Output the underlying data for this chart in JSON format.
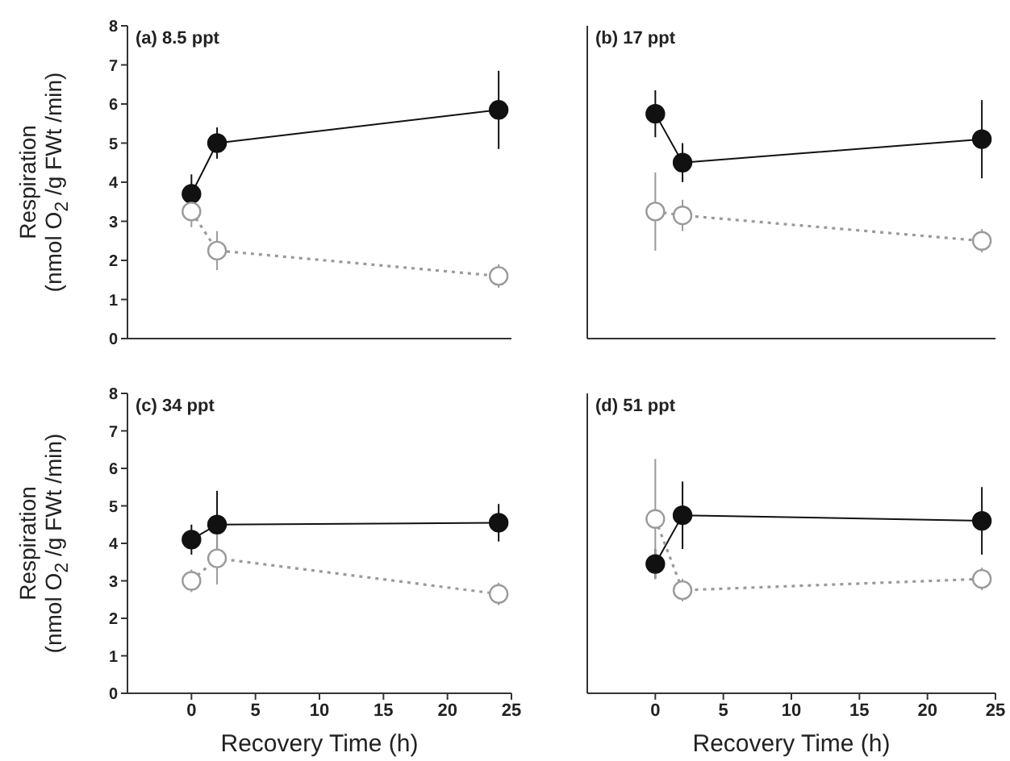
{
  "chart_data": [
    {
      "type": "line",
      "title": "(a) 8.5 ppt",
      "ylabel": "Respiration\n(nmol O$_{2}$ /g FWt /min)",
      "x": [
        0,
        2,
        24
      ],
      "xlim": [
        -5,
        25
      ],
      "xticks": [
        0,
        5,
        10,
        15,
        20,
        25
      ],
      "ylim": [
        0,
        8
      ],
      "yticks": [
        0,
        1,
        2,
        3,
        4,
        5,
        6,
        7,
        8
      ],
      "tick_labels": "y",
      "marker": "circle",
      "grid": false,
      "legend": false,
      "series": [
        {
          "color": "#111111",
          "values": [
            3.7,
            5.0,
            5.85
          ],
          "errors": [
            0.5,
            0.4,
            1.0
          ],
          "line_style": "solid"
        },
        {
          "color": "#9a9a9a",
          "values": [
            3.25,
            2.25,
            1.6
          ],
          "errors": [
            0.4,
            0.5,
            0.3
          ],
          "line_style": "dotted"
        }
      ]
    },
    {
      "type": "line",
      "title": "(b) 17 ppt",
      "x": [
        0,
        2,
        24
      ],
      "xlim": [
        -5,
        25
      ],
      "xticks": [
        0,
        5,
        10,
        15,
        20,
        25
      ],
      "ylim": [
        0,
        8
      ],
      "yticks": [
        0,
        1,
        2,
        3,
        4,
        5,
        6,
        7,
        8
      ],
      "tick_labels": false,
      "marker": "circle",
      "grid": false,
      "legend": false,
      "series": [
        {
          "color": "#111111",
          "values": [
            5.75,
            4.5,
            5.1
          ],
          "errors": [
            0.6,
            0.5,
            1.0
          ],
          "line_style": "solid"
        },
        {
          "color": "#9a9a9a",
          "values": [
            3.25,
            3.15,
            2.5
          ],
          "errors": [
            1.0,
            0.4,
            0.3
          ],
          "line_style": "dotted"
        }
      ]
    },
    {
      "type": "line",
      "title": "(c) 34 ppt",
      "xlabel": "Recovery Time (h)",
      "ylabel": "Respiration\n(nmol O$_{2}$ /g FWt /min)",
      "x": [
        0,
        2,
        24
      ],
      "xlim": [
        -5,
        25
      ],
      "xticks": [
        0,
        5,
        10,
        15,
        20,
        25
      ],
      "ylim": [
        0,
        8
      ],
      "yticks": [
        0,
        1,
        2,
        3,
        4,
        5,
        6,
        7,
        8
      ],
      "marker": "circle",
      "grid": false,
      "legend": false,
      "series": [
        {
          "color": "#111111",
          "values": [
            4.1,
            4.5,
            4.55
          ],
          "errors": [
            0.4,
            0.9,
            0.5
          ],
          "line_style": "solid"
        },
        {
          "color": "#9a9a9a",
          "values": [
            3.0,
            3.6,
            2.65
          ],
          "errors": [
            0.3,
            0.7,
            0.3
          ],
          "line_style": "dotted"
        }
      ]
    },
    {
      "type": "line",
      "title": "(d) 51 ppt",
      "xlabel": "Recovery Time (h)",
      "x": [
        0,
        2,
        24
      ],
      "xlim": [
        -5,
        25
      ],
      "xticks": [
        0,
        5,
        10,
        15,
        20,
        25
      ],
      "ylim": [
        0,
        8
      ],
      "yticks": [
        0,
        1,
        2,
        3,
        4,
        5,
        6,
        7,
        8
      ],
      "tick_labels": "x",
      "marker": "circle",
      "grid": false,
      "legend": false,
      "series": [
        {
          "color": "#111111",
          "values": [
            3.45,
            4.75,
            4.6
          ],
          "errors": [
            0.4,
            0.9,
            0.9
          ],
          "line_style": "solid"
        },
        {
          "color": "#9a9a9a",
          "values": [
            4.65,
            2.75,
            3.05
          ],
          "errors": [
            1.6,
            0.3,
            0.3
          ],
          "line_style": "dotted"
        }
      ]
    }
  ]
}
